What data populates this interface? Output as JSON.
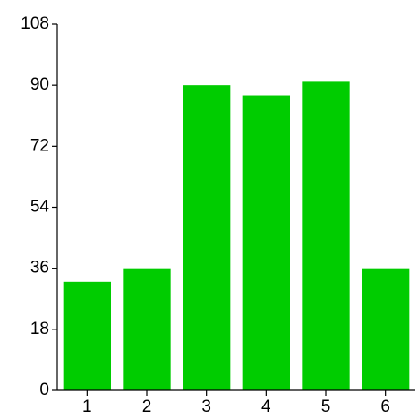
{
  "chart_data": {
    "type": "bar",
    "title": "",
    "xlabel": "",
    "ylabel": "",
    "categories": [
      "1",
      "2",
      "3",
      "4",
      "5",
      "6"
    ],
    "values": [
      32,
      36,
      90,
      87,
      91,
      36
    ],
    "ylim": [
      0,
      108
    ],
    "yticks": [
      0,
      18,
      36,
      54,
      72,
      90,
      108
    ],
    "ytick_labels": [
      "0",
      "18",
      "36",
      "54",
      "72",
      "90",
      "108"
    ],
    "grid": false,
    "legend": "none",
    "bar_color": "#00cc00"
  }
}
